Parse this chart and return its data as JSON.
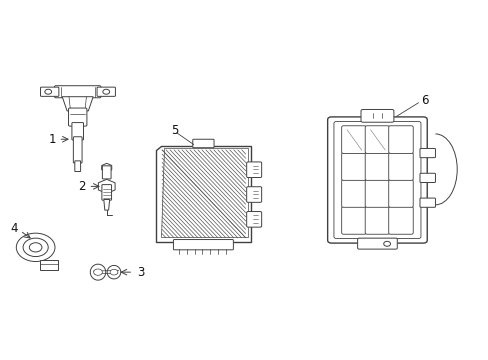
{
  "background_color": "#ffffff",
  "line_color": "#404040",
  "label_color": "#111111",
  "figsize": [
    4.89,
    3.6
  ],
  "dpi": 100,
  "label_fontsize": 8.5
}
